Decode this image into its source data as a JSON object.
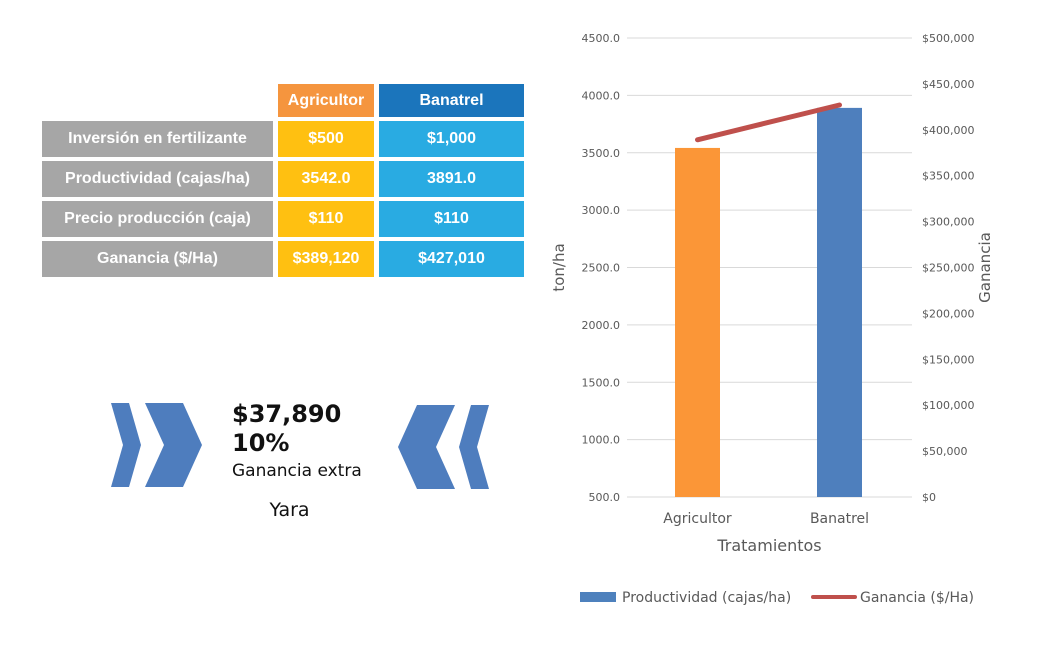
{
  "table": {
    "columns": [
      "Agricultor",
      "Banatrel"
    ],
    "rows": [
      {
        "label": "Inversión en fertilizante",
        "values": [
          "$500",
          "$1,000"
        ]
      },
      {
        "label": "Productividad (cajas/ha)",
        "values": [
          "3542.0",
          "3891.0"
        ]
      },
      {
        "label": "Precio producción (caja)",
        "values": [
          "$110",
          "$110"
        ]
      },
      {
        "label": "Ganancia ($/Ha)",
        "values": [
          "$389,120",
          "$427,010"
        ]
      }
    ],
    "colors": {
      "header_agricultor": "#f5953e",
      "header_banatrel": "#1b75bc",
      "cell_agricultor": "#ffc011",
      "cell_banatrel": "#29abe2",
      "row_label_gray": "#a6a6a6"
    }
  },
  "callout": {
    "amount": "$37,890",
    "percent": "10%",
    "caption": "Ganancia extra",
    "brand": "Yara",
    "chevron_color": "#4e7dbe"
  },
  "chart_data": {
    "type": "bar+line combo",
    "categories": [
      "Agricultor",
      "Banatrel"
    ],
    "series": [
      {
        "name": "Productividad (cajas/ha)",
        "type": "bar",
        "axis": "left",
        "values": [
          3542.0,
          3891.0
        ],
        "point_colors": [
          "#fb9637",
          "#4e7fbd"
        ],
        "legend_color": "#4e81bd"
      },
      {
        "name": "Ganancia ($/Ha)",
        "type": "line",
        "axis": "right",
        "values": [
          389120,
          427010
        ],
        "color": "#bf504c"
      }
    ],
    "left_axis": {
      "title": "ton/ha",
      "min": 500,
      "max": 4500,
      "step": 500,
      "tick_labels": [
        "4500.0",
        "4000.0",
        "3500.0",
        "3000.0",
        "2500.0",
        "2000.0",
        "1500.0",
        "1000.0",
        "500.0"
      ]
    },
    "right_axis": {
      "title": "Ganancia",
      "min": 0,
      "max": 500000,
      "step": 50000,
      "tick_labels": [
        "$500,000",
        "$450,000",
        "$400,000",
        "$350,000",
        "$300,000",
        "$250,000",
        "$200,000",
        "$150,000",
        "$100,000",
        "$50,000",
        "$0"
      ]
    },
    "xlabel": "Tratamientos",
    "grid": "horizontal only",
    "gridline_color": "#d9d9d9",
    "legend_position": "bottom"
  }
}
